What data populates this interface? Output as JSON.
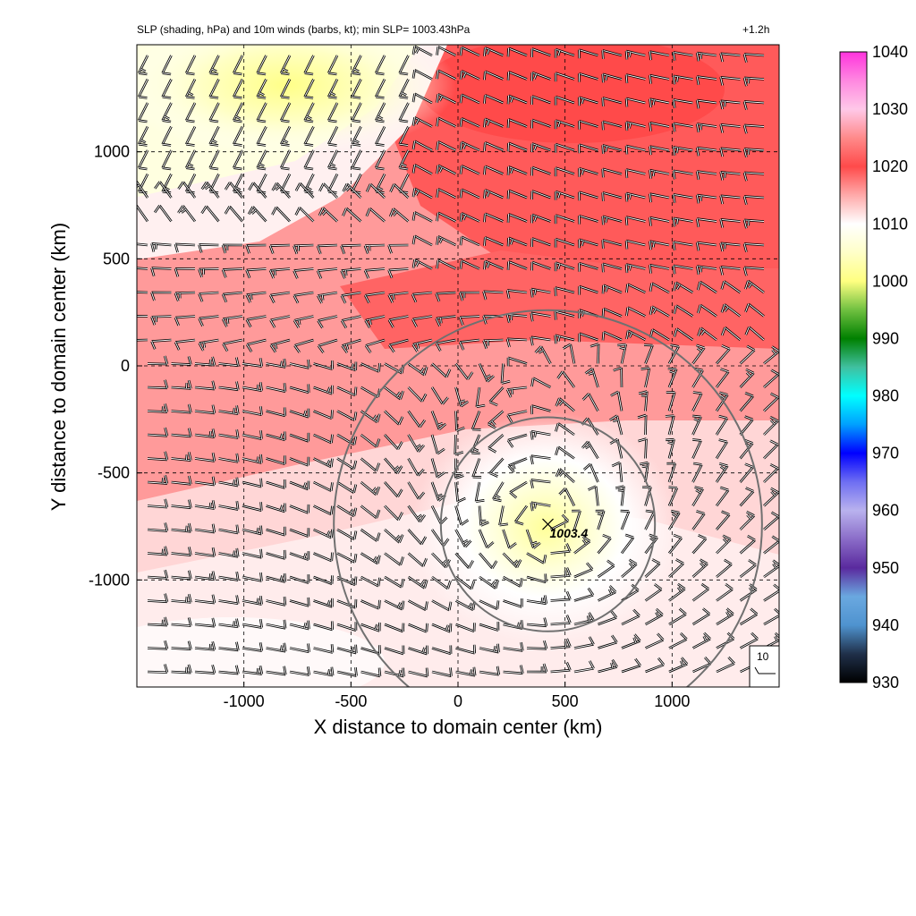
{
  "title": "SLP (shading, hPa) and 10m winds (barbs, kt); min SLP= 1003.43hPa",
  "forecast_time": "+1.2h",
  "xlabel": "X distance to domain center (km)",
  "ylabel": "Y distance to domain center (km)",
  "xticks": [
    -1000,
    -500,
    0,
    500,
    1000
  ],
  "yticks": [
    -1000,
    -500,
    0,
    500,
    1000
  ],
  "xlim": [
    -1500,
    1500
  ],
  "ylim": [
    -1500,
    1500
  ],
  "colorbar": {
    "ticks": [
      930,
      940,
      950,
      960,
      970,
      980,
      990,
      1000,
      1010,
      1020,
      1030,
      1040
    ],
    "range": [
      930,
      1040
    ],
    "stops": [
      {
        "v": 930,
        "c": "#000000"
      },
      {
        "v": 935,
        "c": "#20304a"
      },
      {
        "v": 940,
        "c": "#4f93cf"
      },
      {
        "v": 945,
        "c": "#6aa8e0"
      },
      {
        "v": 950,
        "c": "#5a2a9e"
      },
      {
        "v": 955,
        "c": "#8a6cc8"
      },
      {
        "v": 960,
        "c": "#b9b2ee"
      },
      {
        "v": 965,
        "c": "#6e6ef2"
      },
      {
        "v": 970,
        "c": "#0000ff"
      },
      {
        "v": 975,
        "c": "#00a0ff"
      },
      {
        "v": 980,
        "c": "#00ffff"
      },
      {
        "v": 985,
        "c": "#40c0a0"
      },
      {
        "v": 990,
        "c": "#008000"
      },
      {
        "v": 995,
        "c": "#70c040"
      },
      {
        "v": 1000,
        "c": "#ffff80"
      },
      {
        "v": 1005,
        "c": "#ffffc8"
      },
      {
        "v": 1010,
        "c": "#ffffff"
      },
      {
        "v": 1015,
        "c": "#ffaaaa"
      },
      {
        "v": 1020,
        "c": "#ff4a4a"
      },
      {
        "v": 1025,
        "c": "#ff8a8a"
      },
      {
        "v": 1030,
        "c": "#ffc8e8"
      },
      {
        "v": 1035,
        "c": "#ff88e0"
      },
      {
        "v": 1040,
        "c": "#ff33dd"
      }
    ]
  },
  "center": {
    "x_km": 420,
    "y_km": -740,
    "label": "1003.4"
  },
  "range_rings_km": [
    500,
    1000
  ],
  "barb_reference": {
    "value": "10"
  }
}
